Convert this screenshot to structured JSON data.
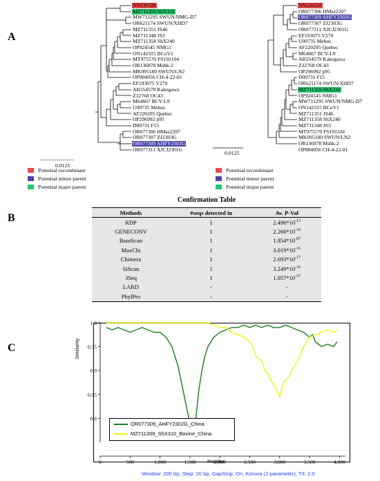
{
  "panels": {
    "a": "A",
    "b": "B",
    "c": "C"
  },
  "colors": {
    "recombinant": "#e8474b",
    "minor_parent": "#4a46a6",
    "major_parent": "#26c66e"
  },
  "tree_left": {
    "scale_label": "0.0125",
    "labels": [
      "NN230328",
      "MZ711359 ShX310",
      "MW711295 SWUN/NMG-D7",
      "OR621174 SWUN/XHD7",
      "MZ711351 JS46",
      "MZ711348 JS3",
      "MZ711358 ShX240",
      "OP924545 NMG1",
      "ON142315 BCoV1",
      "MT975570 FS191104",
      "OR136878 Mshk-2",
      "MK095180 SWUN/LN2",
      "OP004056 CH-4-22-01",
      "EF193075 V270",
      "AB354579 Kakegawa",
      "Z32768 OC43",
      "M64667 BCV-L9",
      "U00735 Mebus",
      "AF220295 Quebec",
      "OP296992 p95",
      "D00731 F15",
      "OR077306 HMsz2207",
      "OR077307 ZJ2303G",
      "OR077309 AHFY2302G",
      "OR077311 XJCJ2301G"
    ]
  },
  "tree_right": {
    "scale_label": "0.0125",
    "labels": [
      "NN230328",
      "OR077306 HMsz2207",
      "OR077309 AHFY2302G",
      "OR077307 ZJ2303G",
      "OR077311 XJCJ2301G",
      "EF193075 V270",
      "U00735 Mebus",
      "AF220295 Quebec",
      "M64667 BCV-L9",
      "AB354579 Kakegawa",
      "Z32768 OC43",
      "OP296992 p95",
      "D00731 F15",
      "OR621174 SWUN/XHD7",
      "MZ711359 ShX310",
      "OP924545 NMG1",
      "MW711295 SWUN/NMG-D7",
      "ON142315 BCoV1",
      "MZ711351 JS46",
      "MZ711358 ShX240",
      "MZ711348 JS3",
      "MT975570 FS191104",
      "MK095180 SWUN/LN2",
      "OR136878 Mshk-2",
      "OP004056 CH-4-22-01"
    ]
  },
  "legend": [
    {
      "label": "Potential recombinant",
      "color": "#e8474b"
    },
    {
      "label": "Potential minor parent",
      "color": "#4a46a6"
    },
    {
      "label": "Potential major parent",
      "color": "#26c66e"
    }
  ],
  "confirmation_table": {
    "title": "Confirmation Table",
    "headers": [
      "Methods",
      "#seqs detected in",
      "Av. P-Val"
    ],
    "rows": [
      {
        "method": "RDP",
        "seqs": "1",
        "pval": "2.496*10",
        "exp": "-13"
      },
      {
        "method": "GENECONV",
        "seqs": "1",
        "pval": "2.266*10",
        "exp": "-16"
      },
      {
        "method": "BootScan",
        "seqs": "1",
        "pval": "1.854*10",
        "exp": "-07"
      },
      {
        "method": "MaxChi",
        "seqs": "1",
        "pval": "3.019*10",
        "exp": "-16"
      },
      {
        "method": "Chimera",
        "seqs": "1",
        "pval": "2.693*10",
        "exp": "-17"
      },
      {
        "method": "SiScan",
        "seqs": "1",
        "pval": "3.249*10",
        "exp": "-16"
      },
      {
        "method": "3Seq",
        "seqs": "1",
        "pval": "1.057*10",
        "exp": "-37"
      },
      {
        "method": "LARD",
        "seqs": "-",
        "pval": "-",
        "exp": ""
      },
      {
        "method": "PhylPro",
        "seqs": "-",
        "pval": "-",
        "exp": ""
      }
    ]
  },
  "chart_data": {
    "type": "line",
    "xlabel": "Position",
    "ylabel": "Similarity",
    "xlim": [
      0,
      4100
    ],
    "ylim": [
      0.75,
      1.0
    ],
    "xticks": [
      "0",
      "500",
      "1,000",
      "1,500",
      "2,000",
      "2,500",
      "3,000",
      "3,500",
      "4,000"
    ],
    "xtick_values": [
      0,
      500,
      1000,
      1500,
      2000,
      2500,
      3000,
      3500,
      4000
    ],
    "yticks": [
      "1.0",
      "0.95",
      "0.9",
      "0.85",
      "0.8"
    ],
    "ytick_values": [
      1.0,
      0.95,
      0.9,
      0.85,
      0.8
    ],
    "grid": false,
    "legend_position": "bottom-left",
    "series": [
      {
        "name": "OR077309_AHFY2302G_China",
        "color": "#1a7a1a",
        "x": [
          100,
          200,
          300,
          400,
          500,
          600,
          700,
          800,
          900,
          1000,
          1100,
          1150,
          1200,
          1250,
          1300,
          1350,
          1400,
          1450,
          1500,
          1530,
          1550,
          1600,
          1650,
          1700,
          1750,
          1800,
          1900,
          2000,
          2100,
          2200,
          2300,
          2400,
          2500,
          2600,
          2700,
          2800,
          2900,
          3000,
          3100,
          3200,
          3300,
          3400,
          3500,
          3550,
          3600,
          3700,
          3800,
          3900,
          3960
        ],
        "y": [
          0.99,
          0.985,
          0.99,
          0.985,
          0.98,
          0.985,
          0.99,
          0.985,
          0.98,
          0.98,
          0.97,
          0.96,
          0.95,
          0.93,
          0.91,
          0.88,
          0.85,
          0.82,
          0.79,
          0.765,
          0.77,
          0.8,
          0.86,
          0.9,
          0.93,
          0.95,
          0.97,
          0.98,
          0.985,
          0.99,
          0.99,
          0.995,
          0.99,
          0.995,
          0.99,
          0.995,
          0.99,
          0.99,
          0.995,
          0.99,
          0.985,
          0.98,
          0.97,
          0.975,
          0.96,
          0.95,
          0.955,
          0.95,
          0.96
        ]
      },
      {
        "name": "MZ711359_ShX310_Bovine_China",
        "color": "#f0ef1a",
        "x": [
          100,
          200,
          300,
          400,
          500,
          600,
          700,
          800,
          900,
          1000,
          1100,
          1200,
          1300,
          1400,
          1500,
          1600,
          1700,
          1800,
          1900,
          2000,
          2100,
          2200,
          2300,
          2400,
          2500,
          2550,
          2600,
          2650,
          2700,
          2750,
          2800,
          2850,
          2900,
          2950,
          3000,
          3050,
          3100,
          3150,
          3200,
          3250,
          3300,
          3350,
          3400,
          3450,
          3500,
          3600,
          3700,
          3800,
          3900,
          3960
        ],
        "y": [
          1.0,
          1.0,
          1.0,
          1.0,
          1.0,
          1.0,
          1.0,
          1.0,
          1.0,
          1.0,
          1.0,
          1.0,
          1.0,
          1.0,
          1.0,
          1.0,
          1.0,
          1.0,
          0.995,
          0.99,
          0.99,
          0.98,
          0.975,
          0.97,
          0.96,
          0.95,
          0.93,
          0.925,
          0.92,
          0.9,
          0.895,
          0.88,
          0.87,
          0.86,
          0.845,
          0.87,
          0.88,
          0.885,
          0.9,
          0.91,
          0.92,
          0.935,
          0.95,
          0.96,
          0.97,
          0.975,
          0.98,
          0.985,
          0.98,
          0.985
        ]
      }
    ]
  },
  "footer": "Window: 200 bp, Step: 20 bp, GapStrip: On, Kimura (2-parameter), T/t: 2.0"
}
